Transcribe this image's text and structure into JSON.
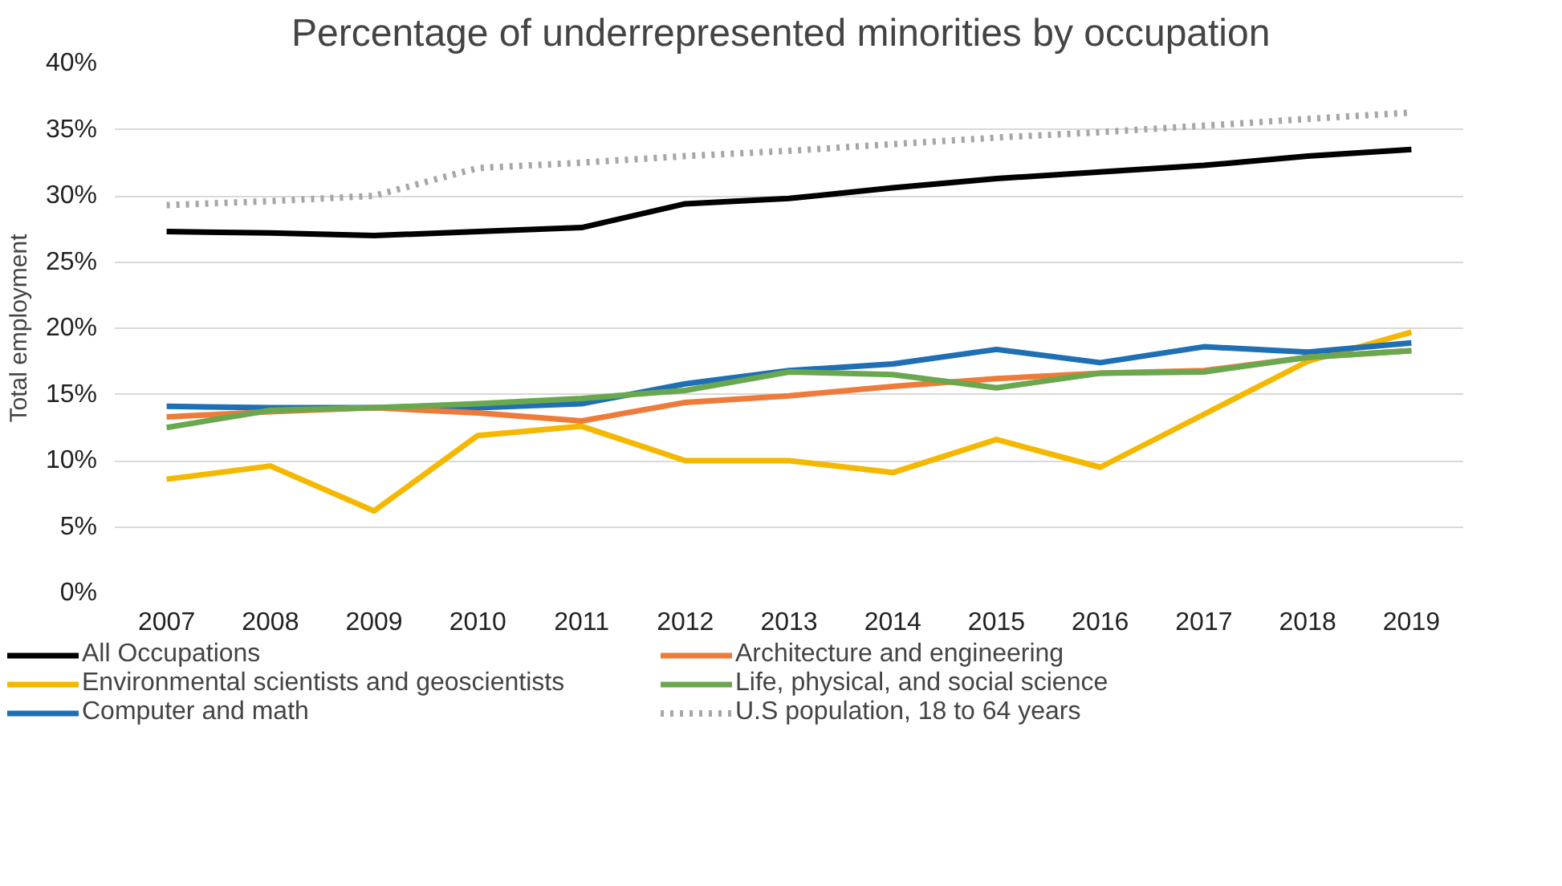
{
  "chart_data": {
    "type": "line",
    "title": "Percentage of underrepresented minorities by occupation",
    "ylabel": "Total employment",
    "categories": [
      "2007",
      "2008",
      "2009",
      "2010",
      "2011",
      "2012",
      "2013",
      "2014",
      "2015",
      "2016",
      "2017",
      "2018",
      "2019"
    ],
    "ylim": [
      0,
      40
    ],
    "yticks": [
      {
        "value": 0,
        "label": "0%"
      },
      {
        "value": 5,
        "label": "5%"
      },
      {
        "value": 10,
        "label": "10%"
      },
      {
        "value": 15,
        "label": "15%"
      },
      {
        "value": 20,
        "label": "20%"
      },
      {
        "value": 25,
        "label": "25%"
      },
      {
        "value": 30,
        "label": "30%"
      },
      {
        "value": 35,
        "label": "35%"
      },
      {
        "value": 40,
        "label": "40%"
      }
    ],
    "grid": "y",
    "legend": "bottom",
    "marker": "none",
    "series": [
      {
        "name": "All Occupations",
        "color": "#000000",
        "values": [
          27.3,
          27.2,
          27.0,
          27.3,
          27.6,
          29.4,
          29.8,
          30.6,
          31.3,
          31.8,
          32.3,
          33.0,
          33.5
        ]
      },
      {
        "name": "Environmental scientists and geoscientists",
        "color": "#f5b800",
        "values": [
          8.6,
          9.6,
          6.2,
          11.9,
          12.6,
          10.0,
          10.0,
          9.1,
          11.6,
          9.5,
          13.5,
          17.5,
          19.7
        ]
      },
      {
        "name": "Computer and math",
        "color": "#1f6fb4",
        "values": [
          14.1,
          14.0,
          14.0,
          14.0,
          14.3,
          15.8,
          16.8,
          17.3,
          18.4,
          17.4,
          18.6,
          18.2,
          18.9
        ]
      },
      {
        "name": "Architecture and engineering",
        "color": "#ee7b3a",
        "values": [
          13.3,
          13.7,
          14.0,
          13.6,
          13.0,
          14.4,
          14.9,
          15.6,
          16.2,
          16.6,
          16.8,
          17.8,
          18.3
        ]
      },
      {
        "name": "Life, physical, and social science",
        "color": "#6aa84f",
        "values": [
          12.5,
          13.8,
          14.0,
          14.3,
          14.7,
          15.3,
          16.7,
          16.5,
          15.5,
          16.6,
          16.7,
          17.8,
          18.3
        ]
      },
      {
        "name": "U.S population, 18 to 64 years",
        "color": "#a6a6a6",
        "line_style": "dotted",
        "values": [
          29.3,
          29.6,
          30.0,
          32.1,
          32.5,
          33.0,
          33.4,
          33.9,
          34.4,
          34.8,
          35.3,
          35.8,
          36.3
        ]
      }
    ]
  }
}
